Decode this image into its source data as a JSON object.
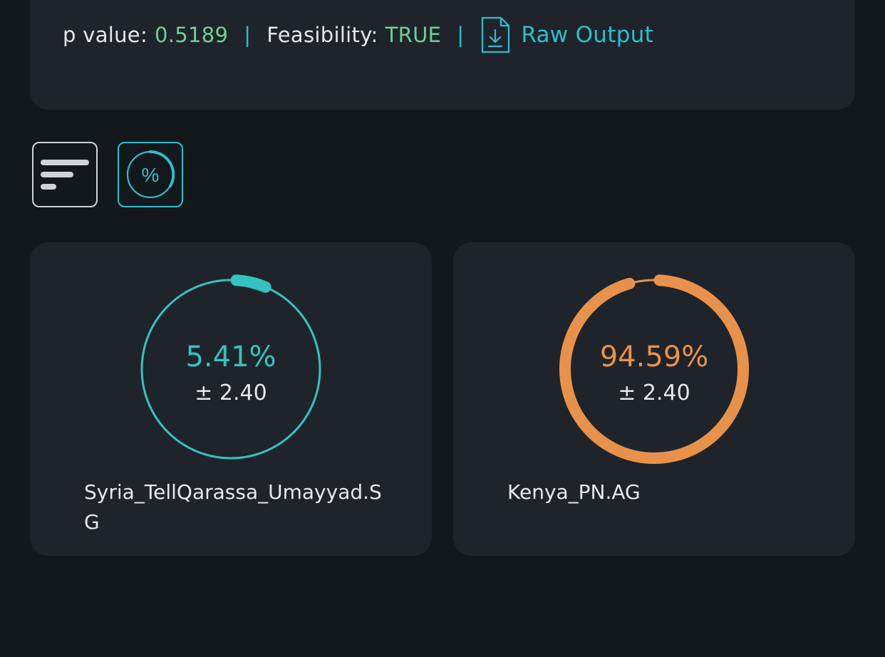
{
  "stats": {
    "p_label": "p value:",
    "p_value": "0.5189",
    "separator": "|",
    "feasibility_label": "Feasibility:",
    "feasibility_value": "TRUE",
    "raw_output_label": "Raw Output",
    "raw_output_icon": "file-download-icon"
  },
  "toggles": [
    {
      "name": "bar-view",
      "icon": "bars-icon"
    },
    {
      "name": "percent-view",
      "icon": "percent-ring-icon",
      "label": "%",
      "active": true
    }
  ],
  "cards": [
    {
      "percent": "5.41%",
      "fraction": 0.0541,
      "uncertainty": "± 2.40",
      "label": "Syria_TellQarassa_Umayyad.SG",
      "color": "#34c3c0"
    },
    {
      "percent": "94.59%",
      "fraction": 0.9459,
      "uncertainty": "± 2.40",
      "label": "Kenya_PN.AG",
      "color": "#e8914a"
    }
  ],
  "colors": {
    "background": "#13181c",
    "panel": "#1f242a",
    "accent": "#2bbfcf",
    "positive": "#6fcf97"
  }
}
